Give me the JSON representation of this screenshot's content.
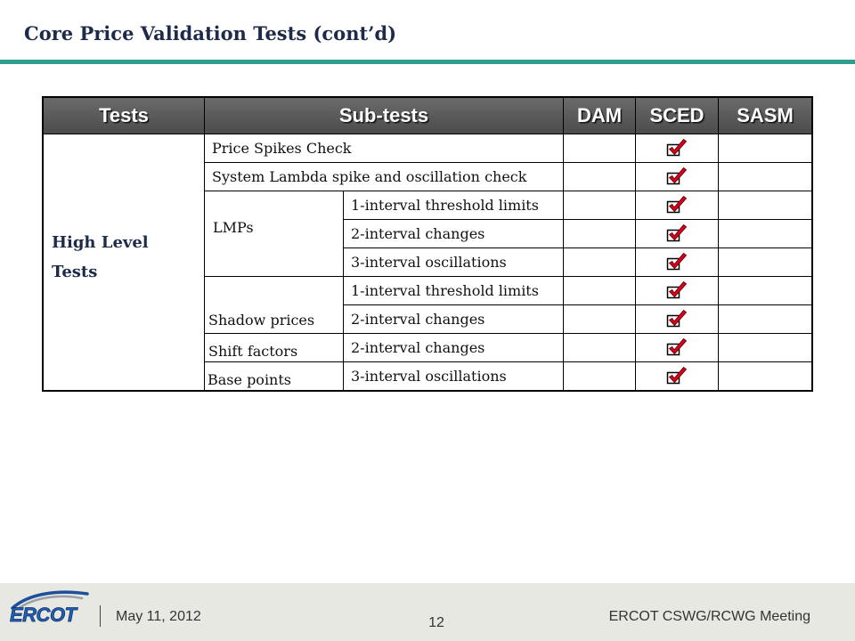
{
  "slide": {
    "title": "Core Price Validation Tests (cont’d)",
    "colors": {
      "title": "#1e2a4a",
      "accent_rule": "#2f9e8f",
      "header_bg": "#595959",
      "check_red": "#d6001c",
      "footer_bg": "#e8e8e3"
    }
  },
  "table": {
    "headers": {
      "tests": "Tests",
      "subtests": "Sub-tests",
      "dam": "DAM",
      "sced": "SCED",
      "sasm": "SASM"
    },
    "group": {
      "label": "High Level Tests"
    },
    "check_icon": "check-box-icon",
    "rows": [
      {
        "subtest": "Price Spikes Check",
        "dam": false,
        "sced": true,
        "sasm": false
      },
      {
        "subtest": "System Lambda spike and oscillation check",
        "dam": false,
        "sced": true,
        "sasm": false
      },
      {
        "category": "LMPs",
        "subtest": "1-interval threshold limits",
        "dam": false,
        "sced": true,
        "sasm": false
      },
      {
        "subtest": "2-interval changes",
        "dam": false,
        "sced": true,
        "sasm": false
      },
      {
        "subtest": "3-interval oscillations",
        "dam": false,
        "sced": true,
        "sasm": false
      },
      {
        "category": "Shadow prices",
        "subtest": "1-interval threshold limits",
        "dam": false,
        "sced": true,
        "sasm": false
      },
      {
        "subtest": "2-interval changes",
        "dam": false,
        "sced": true,
        "sasm": false
      },
      {
        "category": "Shift factors",
        "subtest": "2-interval changes",
        "dam": false,
        "sced": true,
        "sasm": false
      },
      {
        "category": "Base points",
        "subtest": "3-interval oscillations",
        "dam": false,
        "sced": true,
        "sasm": false
      }
    ]
  },
  "footer": {
    "logo_text": "ERCOT",
    "date": "May 11, 2012",
    "page_number": "12",
    "meeting": "ERCOT CSWG/RCWG Meeting"
  }
}
